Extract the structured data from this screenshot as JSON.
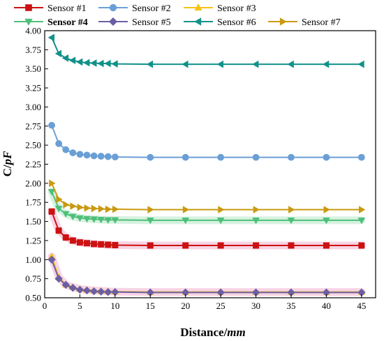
{
  "chart_data": {
    "type": "line",
    "x": [
      1,
      2,
      3,
      4,
      5,
      6,
      7,
      8,
      9,
      10,
      15,
      20,
      25,
      30,
      35,
      40,
      45
    ],
    "xlim": [
      0,
      47
    ],
    "ylim": [
      0.5,
      4.0
    ],
    "x_ticks": [
      0,
      5,
      10,
      15,
      20,
      25,
      30,
      35,
      40,
      45
    ],
    "y_ticks": [
      "0.50",
      "0.75",
      "1.00",
      "1.25",
      "1.50",
      "1.75",
      "2.00",
      "2.25",
      "2.50",
      "2.75",
      "3.00",
      "3.25",
      "3.50",
      "3.75",
      "4.00"
    ],
    "xlabel_main": "Distance/",
    "xlabel_unit": "mm",
    "ylabel_main": "C/",
    "ylabel_unit": "pF",
    "grid": false,
    "legend_position": "top",
    "series": [
      {
        "name": "Sensor #1",
        "color": "#cc1111",
        "marker": "square",
        "values": [
          1.63,
          1.38,
          1.29,
          1.25,
          1.225,
          1.215,
          1.205,
          1.2,
          1.195,
          1.19,
          1.185,
          1.185,
          1.185,
          1.185,
          1.185,
          1.185,
          1.185
        ]
      },
      {
        "name": "Sensor #2",
        "color": "#6a9fd6",
        "marker": "circle",
        "values": [
          2.76,
          2.52,
          2.44,
          2.4,
          2.38,
          2.37,
          2.36,
          2.355,
          2.35,
          2.345,
          2.34,
          2.34,
          2.34,
          2.34,
          2.34,
          2.34,
          2.34
        ]
      },
      {
        "name": "Sensor #3",
        "color": "#f5c218",
        "marker": "triangle-up",
        "values": [
          1.04,
          0.77,
          0.67,
          0.64,
          0.615,
          0.605,
          0.595,
          0.59,
          0.585,
          0.58,
          0.575,
          0.575,
          0.575,
          0.575,
          0.575,
          0.575,
          0.575
        ]
      },
      {
        "name": "Sensor #4",
        "color": "#4fbf7a",
        "marker": "triangle-down",
        "values": [
          1.89,
          1.67,
          1.6,
          1.565,
          1.545,
          1.535,
          1.53,
          1.525,
          1.52,
          1.52,
          1.515,
          1.515,
          1.515,
          1.515,
          1.515,
          1.515,
          1.515
        ]
      },
      {
        "name": "Sensor #5",
        "color": "#6b5fa3",
        "marker": "diamond",
        "values": [
          1.0,
          0.75,
          0.67,
          0.63,
          0.605,
          0.595,
          0.585,
          0.58,
          0.575,
          0.575,
          0.57,
          0.57,
          0.57,
          0.57,
          0.57,
          0.57,
          0.57
        ]
      },
      {
        "name": "Sensor #6",
        "color": "#12918a",
        "marker": "triangle-left",
        "values": [
          3.91,
          3.7,
          3.64,
          3.61,
          3.59,
          3.58,
          3.575,
          3.57,
          3.57,
          3.565,
          3.56,
          3.56,
          3.56,
          3.56,
          3.56,
          3.56,
          3.56
        ]
      },
      {
        "name": "Sensor #7",
        "color": "#c99a10",
        "marker": "triangle-right",
        "values": [
          2.0,
          1.79,
          1.72,
          1.7,
          1.685,
          1.675,
          1.67,
          1.665,
          1.66,
          1.66,
          1.655,
          1.655,
          1.655,
          1.655,
          1.655,
          1.655,
          1.655
        ]
      }
    ]
  }
}
